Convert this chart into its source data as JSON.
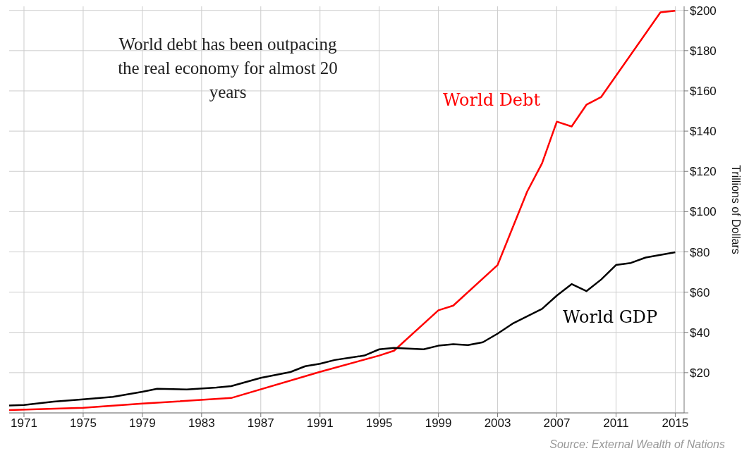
{
  "chart_data": {
    "type": "line",
    "ylabel": "Trillions of Dollars",
    "annotations": [
      "World debt has been outpacing the real economy for almost 20 years",
      "Source: External Wealth of Nations"
    ],
    "xlim": [
      1970,
      2015.6
    ],
    "xticks": [
      1971,
      1975,
      1979,
      1983,
      1987,
      1991,
      1995,
      1999,
      2003,
      2007,
      2011,
      2015
    ],
    "ylim": [
      0,
      202
    ],
    "yticks": [
      {
        "value": 0,
        "label": null
      },
      {
        "value": 20,
        "label": "$20"
      },
      {
        "value": 40,
        "label": "$40"
      },
      {
        "value": 60,
        "label": "$60"
      },
      {
        "value": 80,
        "label": "$80"
      },
      {
        "value": 100,
        "label": "$100"
      },
      {
        "value": 120,
        "label": "$120"
      },
      {
        "value": 140,
        "label": "$140"
      },
      {
        "value": 160,
        "label": "$160"
      },
      {
        "value": 180,
        "label": "$180"
      },
      {
        "value": 200,
        "label": "$200"
      }
    ],
    "grid": true,
    "legend": false,
    "marker": "none",
    "line_style": "solid",
    "series": [
      {
        "name": "World Debt",
        "color": "#ff0000",
        "x": [
          1970,
          1975,
          1979,
          1985,
          1991,
          1995,
          1996,
          1999,
          2000,
          2003,
          2005,
          2006,
          2007,
          2008,
          2009,
          2010,
          2014,
          2015
        ],
        "values": [
          1.4,
          2.5,
          4.6,
          7.4,
          20.4,
          28.5,
          30.9,
          51,
          53.3,
          73.5,
          110,
          124,
          144.7,
          142.3,
          153.1,
          157,
          199,
          199.8
        ]
      },
      {
        "name": "World GDP",
        "color": "#000000",
        "x": [
          1970,
          1971,
          1973,
          1975,
          1977,
          1979,
          1980,
          1982,
          1984,
          1985,
          1987,
          1989,
          1990,
          1991,
          1992,
          1994,
          1995,
          1996,
          1998,
          1999,
          2000,
          2001,
          2002,
          2003,
          2004,
          2006,
          2007,
          2008,
          2009,
          2010,
          2011,
          2012,
          2013,
          2015
        ],
        "values": [
          3.7,
          3.9,
          5.6,
          6.7,
          8,
          10.5,
          12,
          11.6,
          12.6,
          13.3,
          17.4,
          20.3,
          23.2,
          24.4,
          26.3,
          28.5,
          31.6,
          32.3,
          31.6,
          33.4,
          34.1,
          33.7,
          35.1,
          39.4,
          44.3,
          51.7,
          58.3,
          64,
          60.5,
          66.3,
          73.5,
          74.5,
          77.2,
          79.8
        ]
      }
    ]
  }
}
